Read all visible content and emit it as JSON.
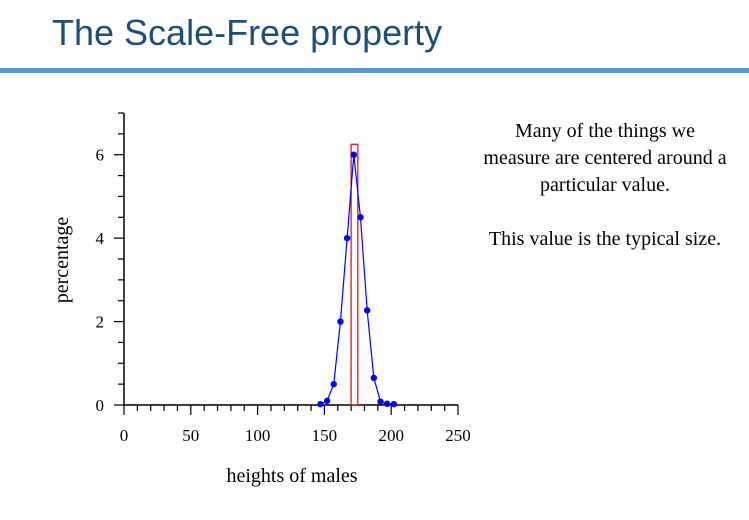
{
  "slide": {
    "title": "The Scale-Free property",
    "note_line1": "Many of the things we measure are centered around a particular value.",
    "note_line2": "This value is the typical size.",
    "accent_color": "#5b9bd5",
    "title_color": "#1f4e79"
  },
  "chart_data": {
    "type": "line",
    "title": "",
    "xlabel": "heights of males",
    "ylabel": "percentage",
    "xlim": [
      0,
      250
    ],
    "ylim": [
      0,
      7
    ],
    "x_ticks": [
      0,
      50,
      100,
      150,
      200,
      250
    ],
    "y_ticks": [
      0,
      2,
      4,
      6
    ],
    "series": [
      {
        "x": [
          147,
          152,
          157,
          162,
          167,
          172,
          177,
          182,
          187,
          192,
          197,
          202
        ],
        "y": [
          0.02,
          0.1,
          0.5,
          2.0,
          4.0,
          6.0,
          4.5,
          2.27,
          0.65,
          0.08,
          0.03,
          0.02
        ],
        "color": "#0000ff",
        "marker": "circle"
      }
    ],
    "highlight": {
      "type": "bar",
      "x_from": 170,
      "x_to": 175,
      "y": 6.25,
      "color": "#e31a1c"
    },
    "grid": false
  }
}
